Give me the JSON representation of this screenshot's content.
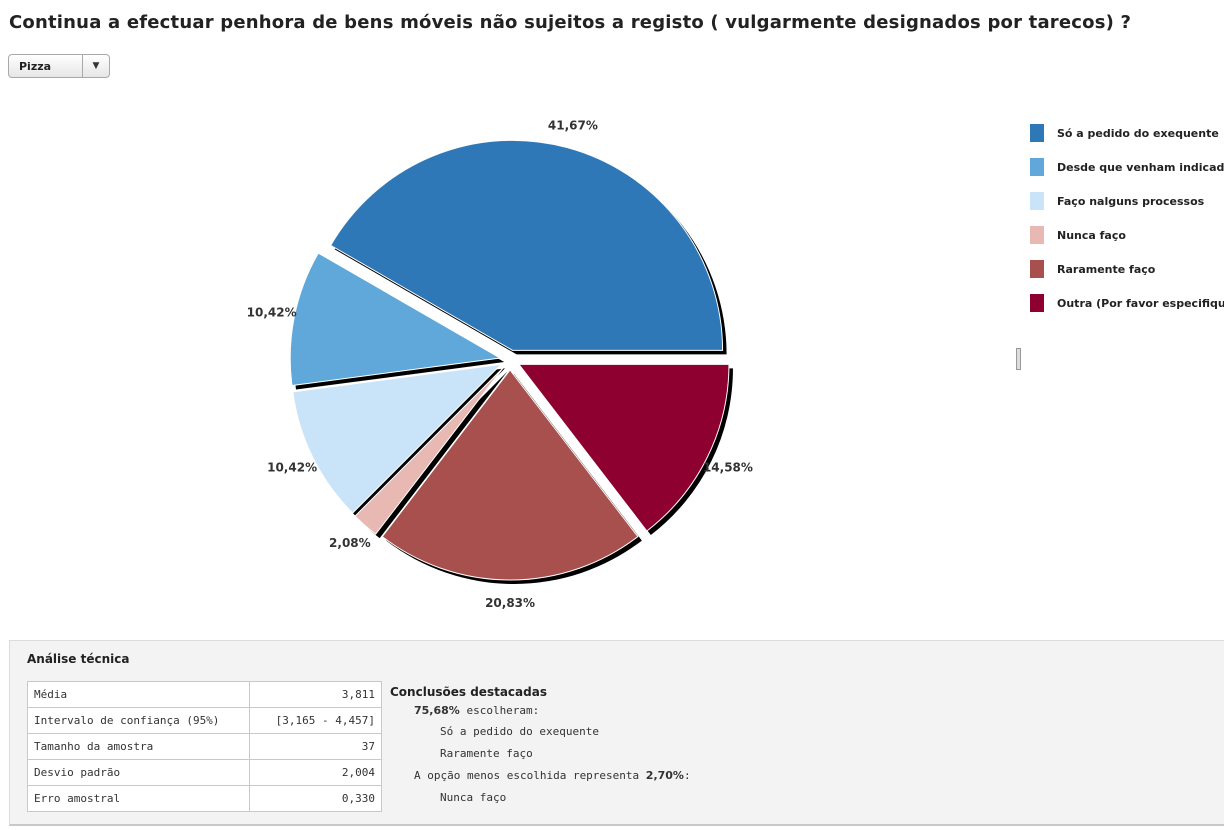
{
  "title": "Continua a efectuar penhora de bens móveis não sujeitos a registo ( vulgarmente designados por tarecos) ?",
  "chart_type_select": {
    "value": "Pizza",
    "arrow": "▼"
  },
  "chart_data": {
    "type": "pie",
    "title": "Continua a efectuar penhora de bens móveis não sujeitos a registo ( vulgarmente designados por tarecos) ?",
    "start_angle_deg": 0,
    "direction": "counterclockwise",
    "exploded": true,
    "slices": [
      {
        "label": "Só a pedido do exequente",
        "value": 41.67,
        "display": "41,67%",
        "color": "#2e78b7"
      },
      {
        "label": "Desde que venham indicados",
        "value": 10.42,
        "display": "10,42%",
        "color": "#5fa8d9"
      },
      {
        "label": "Faço nalguns processos",
        "value": 10.42,
        "display": "10,42%",
        "color": "#c9e3f8"
      },
      {
        "label": "Nunca faço",
        "value": 2.08,
        "display": "2,08%",
        "color": "#e8b9b2"
      },
      {
        "label": "Raramente faço",
        "value": 20.83,
        "display": "20,83%",
        "color": "#a8504d"
      },
      {
        "label": "Outra (Por favor especifique)",
        "value": 14.58,
        "display": "14,58%",
        "color": "#8e0030"
      }
    ]
  },
  "legend": {
    "items": [
      {
        "label": "Só a pedido do exequente",
        "color": "#2e78b7"
      },
      {
        "label": "Desde que venham indicados",
        "color": "#5fa8d9"
      },
      {
        "label": "Faço nalguns processos",
        "color": "#c9e3f8"
      },
      {
        "label": "Nunca faço",
        "color": "#e8b9b2"
      },
      {
        "label": "Raramente faço",
        "color": "#a8504d"
      },
      {
        "label": "Outra (Por favor especifique)",
        "color": "#8e0030"
      }
    ]
  },
  "analysis": {
    "title": "Análise técnica",
    "stats": [
      {
        "label": "Média",
        "value": "3,811"
      },
      {
        "label": "Intervalo de confiança (95%)",
        "value": "[3,165 - 4,457]"
      },
      {
        "label": "Tamanho da amostra",
        "value": "37"
      },
      {
        "label": "Desvio padrão",
        "value": "2,004"
      },
      {
        "label": "Erro amostral",
        "value": "0,330"
      }
    ],
    "conclusions": {
      "title": "Conclusões destacadas",
      "chosen_pct": "75,68%",
      "chosen_text": " escolheram:",
      "chosen_options": [
        "Só a pedido do exequente",
        "Raramente faço"
      ],
      "least_text": "A opção menos escolhida representa ",
      "least_pct": "2,70%",
      "least_suffix": ":",
      "least_option": "Nunca faço"
    }
  }
}
